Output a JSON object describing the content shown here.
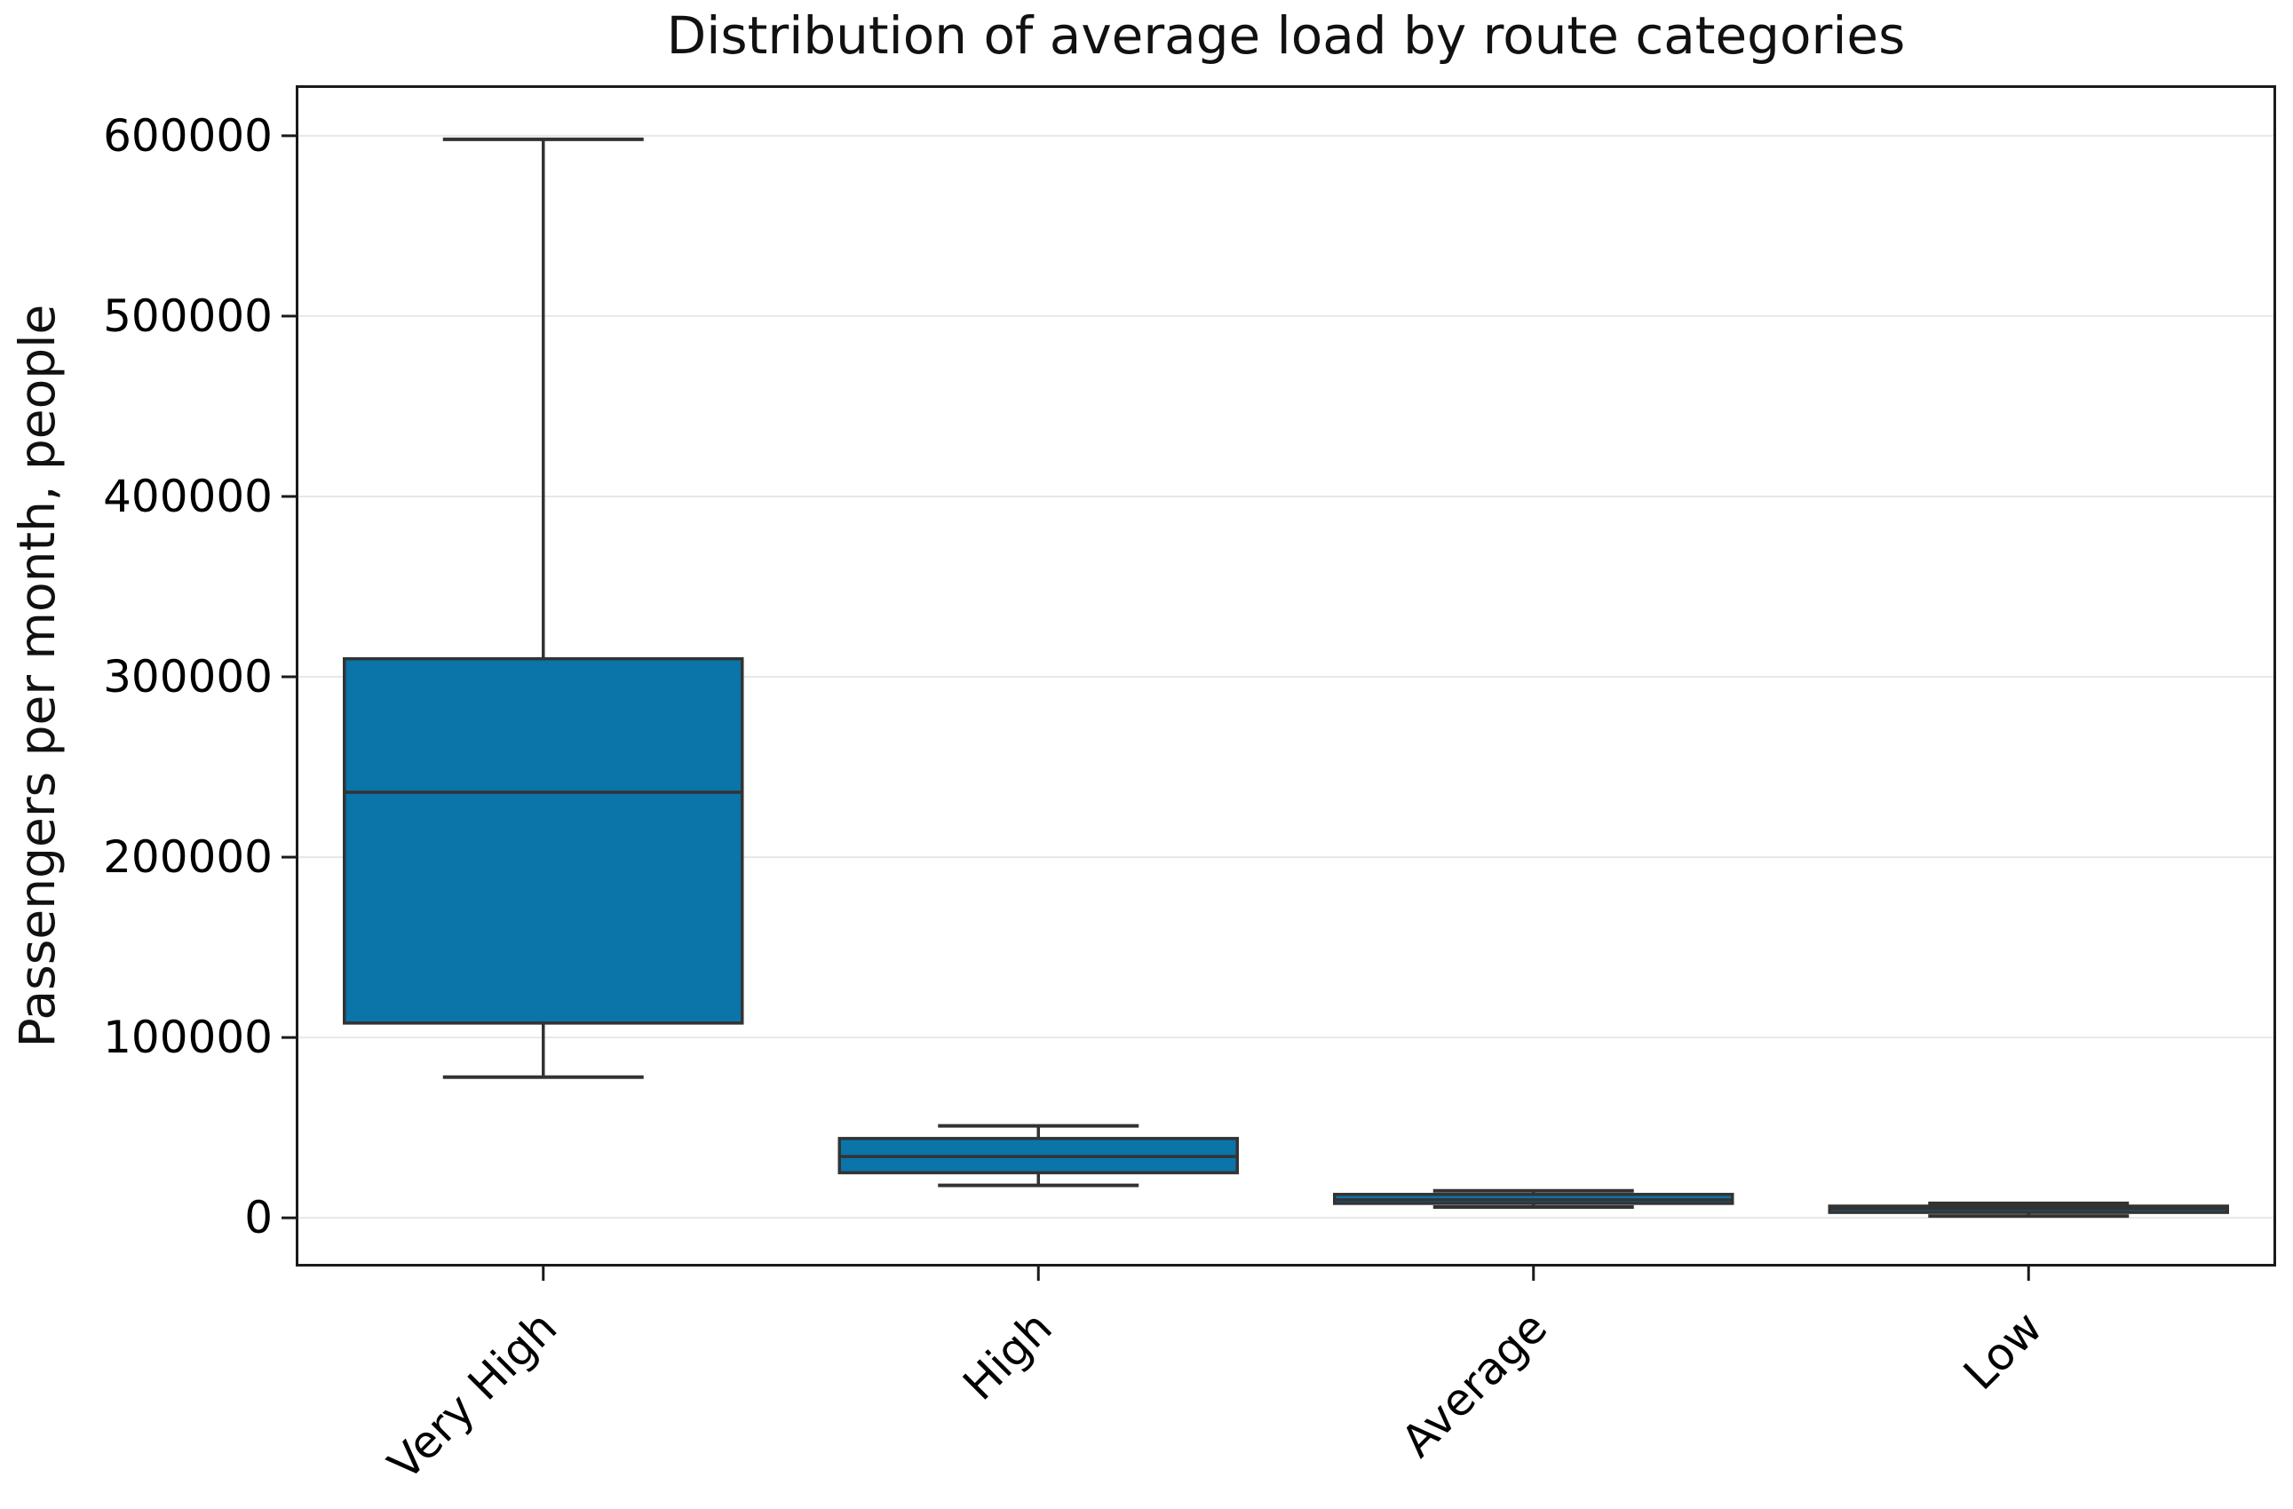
{
  "figure": {
    "background": "#ffffff"
  },
  "chart_data": {
    "type": "box",
    "title": "Distribution of average load by route categories",
    "xlabel": "",
    "ylabel": "Passengers per month, people",
    "categories": [
      "Very High",
      "High",
      "Average",
      "Low"
    ],
    "series": [
      {
        "name": "Very High",
        "whislo": 78000,
        "q1": 108000,
        "med": 236000,
        "q3": 310000,
        "whishi": 598000
      },
      {
        "name": "High",
        "whislo": 18000,
        "q1": 25000,
        "med": 34000,
        "q3": 44000,
        "whishi": 51000
      },
      {
        "name": "Average",
        "whislo": 6000,
        "q1": 8000,
        "med": 10000,
        "q3": 13000,
        "whishi": 15000
      },
      {
        "name": "Low",
        "whislo": 1000,
        "q1": 3000,
        "med": 5000,
        "q3": 6500,
        "whishi": 8000
      }
    ],
    "yticks": [
      {
        "value": 0,
        "label": "0"
      },
      {
        "value": 100000,
        "label": "100000"
      },
      {
        "value": 200000,
        "label": "200000"
      },
      {
        "value": 300000,
        "label": "300000"
      },
      {
        "value": 400000,
        "label": "400000"
      },
      {
        "value": 500000,
        "label": "500000"
      },
      {
        "value": 600000,
        "label": "600000"
      }
    ],
    "ylim": [
      -27000,
      628000
    ],
    "grid": "horizontal-only",
    "legend": "none",
    "colors": {
      "box_fill": "#0b74a9",
      "box_edge": "#333333",
      "whisker": "#333333",
      "median": "#333333",
      "grid_line": "#e7e7e7",
      "axis_frame": "#1a1a1a",
      "text": "#000000"
    }
  }
}
